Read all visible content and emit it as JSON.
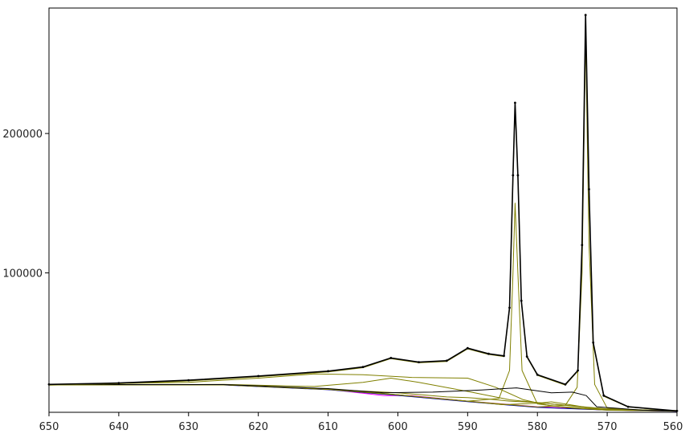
{
  "chart_data": {
    "type": "line",
    "title": "",
    "xlabel": "",
    "ylabel": "",
    "x_reversed": true,
    "xlim": [
      650,
      560
    ],
    "ylim": [
      0,
      290000
    ],
    "grid": false,
    "legend": "none",
    "x_ticks": [
      650,
      640,
      630,
      620,
      610,
      600,
      590,
      580,
      570,
      560
    ],
    "y_ticks": [
      100000,
      200000
    ],
    "x_tick_labels": [
      "650",
      "640",
      "630",
      "620",
      "610",
      "600",
      "590",
      "580",
      "570",
      "560"
    ],
    "y_tick_labels": [
      "100000",
      "200000"
    ],
    "series": [
      {
        "role": "measured",
        "color": "#000000",
        "points": [
          [
            650,
            20000
          ],
          [
            640,
            21000
          ],
          [
            630,
            23000
          ],
          [
            620,
            26000
          ],
          [
            610,
            29500
          ],
          [
            605,
            32500
          ],
          [
            601,
            39000
          ],
          [
            597,
            36000
          ],
          [
            593,
            37000
          ],
          [
            590,
            46000
          ],
          [
            587,
            42000
          ],
          [
            584.8,
            40500
          ],
          [
            584,
            75000
          ],
          [
            583.5,
            170000
          ],
          [
            583.2,
            222000
          ],
          [
            582.8,
            170000
          ],
          [
            582.3,
            80000
          ],
          [
            581.5,
            40000
          ],
          [
            580,
            27000
          ],
          [
            576,
            20000
          ],
          [
            574.2,
            30000
          ],
          [
            573.6,
            120000
          ],
          [
            573.1,
            285000
          ],
          [
            572.6,
            160000
          ],
          [
            572,
            50000
          ],
          [
            570.5,
            12000
          ],
          [
            567,
            4000
          ],
          [
            560,
            1000
          ]
        ]
      },
      {
        "role": "fit-envelope",
        "color": "#808000",
        "points": [
          [
            650,
            19500
          ],
          [
            640,
            20500
          ],
          [
            630,
            22500
          ],
          [
            620,
            25500
          ],
          [
            610,
            29000
          ],
          [
            605,
            32000
          ],
          [
            601,
            38500
          ],
          [
            597,
            35500
          ],
          [
            593,
            36500
          ],
          [
            590,
            45500
          ],
          [
            587,
            41500
          ],
          [
            584.8,
            40000
          ],
          [
            584,
            74000
          ],
          [
            583.5,
            168000
          ],
          [
            583.2,
            220000
          ],
          [
            582.8,
            168000
          ],
          [
            582.3,
            79000
          ],
          [
            581.5,
            39500
          ],
          [
            580,
            26500
          ],
          [
            576,
            19500
          ],
          [
            574.2,
            29500
          ],
          [
            573.6,
            118000
          ],
          [
            573.1,
            281000
          ],
          [
            572.6,
            158000
          ],
          [
            572,
            49000
          ],
          [
            570.5,
            11500
          ],
          [
            567,
            3800
          ],
          [
            560,
            900
          ]
        ]
      },
      {
        "role": "component",
        "color": "#808000",
        "points": [
          [
            650,
            19800
          ],
          [
            630,
            21500
          ],
          [
            620,
            24500
          ],
          [
            612,
            27500
          ],
          [
            605,
            27000
          ],
          [
            598,
            25000
          ],
          [
            590,
            24500
          ],
          [
            586,
            18000
          ],
          [
            582,
            9000
          ],
          [
            578,
            4500
          ],
          [
            572,
            2500
          ],
          [
            560,
            1200
          ]
        ]
      },
      {
        "role": "component",
        "color": "#808000",
        "points": [
          [
            650,
            19800
          ],
          [
            625,
            20000
          ],
          [
            612,
            18500
          ],
          [
            605,
            21500
          ],
          [
            601,
            24500
          ],
          [
            597,
            21500
          ],
          [
            590,
            15000
          ],
          [
            584,
            9000
          ],
          [
            578,
            6000
          ],
          [
            570,
            2500
          ],
          [
            560,
            1000
          ]
        ]
      },
      {
        "role": "component",
        "color": "#808000",
        "points": [
          [
            650,
            19800
          ],
          [
            625,
            19800
          ],
          [
            610,
            16500
          ],
          [
            600,
            14000
          ],
          [
            593,
            11000
          ],
          [
            590,
            10500
          ],
          [
            587,
            9500
          ],
          [
            584,
            8000
          ],
          [
            580,
            7000
          ],
          [
            575,
            4500
          ],
          [
            570,
            2000
          ],
          [
            560,
            1000
          ]
        ]
      },
      {
        "role": "component",
        "color": "#808000",
        "points": [
          [
            650,
            19800
          ],
          [
            625,
            19800
          ],
          [
            610,
            16500
          ],
          [
            600,
            12500
          ],
          [
            590,
            8000
          ],
          [
            585,
            5500
          ],
          [
            580,
            6500
          ],
          [
            578,
            7500
          ],
          [
            576,
            6000
          ],
          [
            573,
            3500
          ],
          [
            570,
            1800
          ],
          [
            560,
            900
          ]
        ]
      },
      {
        "role": "component",
        "color": "#808000",
        "points": [
          [
            650,
            19800
          ],
          [
            625,
            19800
          ],
          [
            610,
            16500
          ],
          [
            600,
            12500
          ],
          [
            590,
            8000
          ],
          [
            585.5,
            10000
          ],
          [
            584,
            30000
          ],
          [
            583.5,
            100000
          ],
          [
            583.2,
            150000
          ],
          [
            582.8,
            100000
          ],
          [
            582.2,
            30000
          ],
          [
            580,
            6000
          ],
          [
            575,
            3000
          ],
          [
            570,
            1500
          ],
          [
            560,
            900
          ]
        ]
      },
      {
        "role": "component",
        "color": "#808000",
        "points": [
          [
            650,
            19800
          ],
          [
            625,
            19800
          ],
          [
            610,
            16500
          ],
          [
            600,
            12500
          ],
          [
            590,
            8000
          ],
          [
            580,
            3800
          ],
          [
            576,
            5000
          ],
          [
            574.3,
            18000
          ],
          [
            573.6,
            100000
          ],
          [
            573.1,
            270000
          ],
          [
            572.6,
            120000
          ],
          [
            571.8,
            20000
          ],
          [
            570,
            3000
          ],
          [
            565,
            1500
          ],
          [
            560,
            900
          ]
        ]
      },
      {
        "role": "component",
        "color": "#000000",
        "points": [
          [
            650,
            19900
          ],
          [
            625,
            19900
          ],
          [
            610,
            17000
          ],
          [
            602,
            14000
          ],
          [
            595,
            14500
          ],
          [
            588,
            16000
          ],
          [
            583,
            17500
          ],
          [
            578,
            14000
          ],
          [
            575,
            14500
          ],
          [
            573,
            12000
          ],
          [
            571.5,
            4000
          ],
          [
            565,
            1500
          ],
          [
            560,
            1000
          ]
        ]
      },
      {
        "role": "background",
        "color": "#ff00ff",
        "points": [
          [
            650,
            19800
          ],
          [
            625,
            19800
          ],
          [
            610,
            16500
          ],
          [
            602,
            12000
          ],
          [
            598,
            12000
          ],
          [
            590,
            8000
          ],
          [
            585,
            6000
          ],
          [
            580,
            4000
          ],
          [
            575,
            2800
          ],
          [
            570,
            2000
          ],
          [
            560,
            900
          ]
        ]
      },
      {
        "role": "background",
        "color": "#cc0000",
        "points": [
          [
            650,
            19700
          ],
          [
            625,
            19700
          ],
          [
            610,
            16400
          ],
          [
            600,
            12300
          ],
          [
            590,
            7800
          ],
          [
            580,
            3700
          ],
          [
            570,
            1700
          ],
          [
            560,
            800
          ]
        ]
      },
      {
        "role": "background",
        "color": "#0000aa",
        "points": [
          [
            650,
            19600
          ],
          [
            625,
            19600
          ],
          [
            610,
            16200
          ],
          [
            600,
            12100
          ],
          [
            590,
            7600
          ],
          [
            580,
            3500
          ],
          [
            570,
            1600
          ],
          [
            560,
            700
          ]
        ]
      }
    ]
  }
}
